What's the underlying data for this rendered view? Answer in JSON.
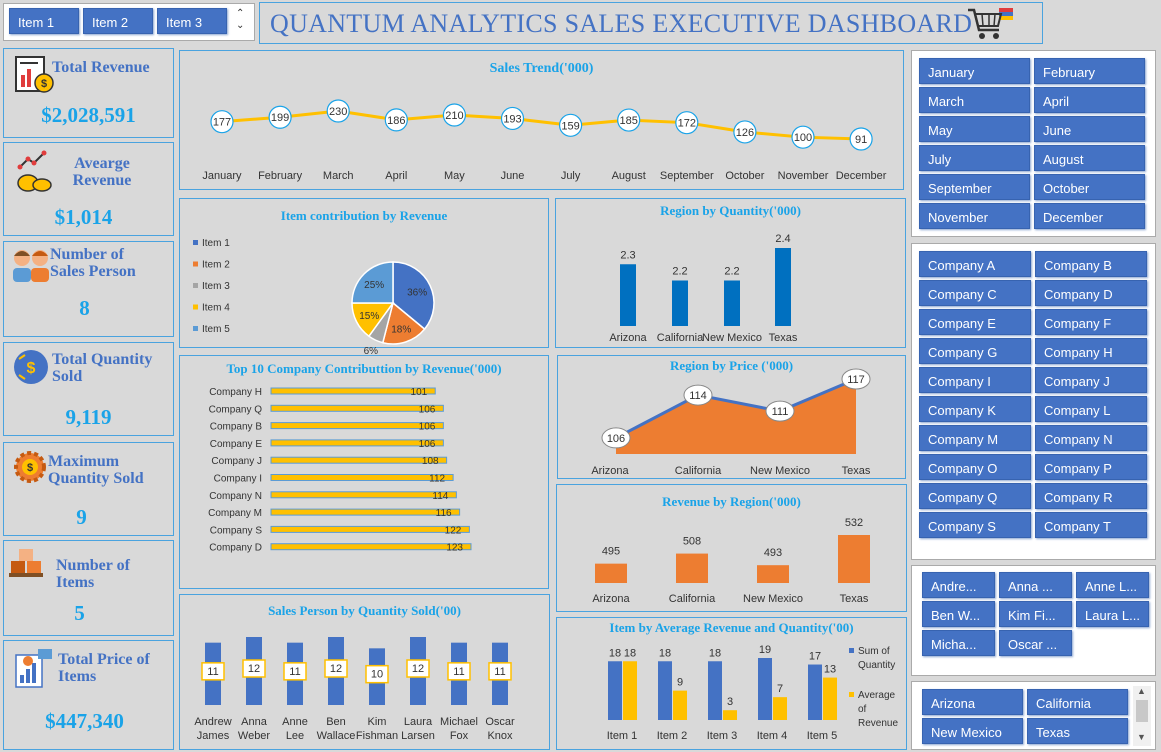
{
  "header": {
    "title": "QUANTUM ANALYTICS SALES EXECUTIVE DASHBOARD",
    "item_buttons": [
      "Item 1",
      "Item 2",
      "Item 3"
    ]
  },
  "kpis": [
    {
      "title": "Total Revenue",
      "value": "$2,028,591",
      "icon": "revenue-report-icon"
    },
    {
      "title": "Avearge Revenue",
      "value": "$1,014",
      "icon": "coins-growth-icon"
    },
    {
      "title": "Number of Sales Person",
      "value": "8",
      "icon": "people-icon"
    },
    {
      "title": "Total Quantity Sold",
      "value": "9,119",
      "icon": "quantity-exchange-icon"
    },
    {
      "title": "Maximum Quantity Sold",
      "value": "9",
      "icon": "gear-dollar-icon"
    },
    {
      "title": "Number of Items",
      "value": "5",
      "icon": "boxes-icon"
    },
    {
      "title": "Total Price of Items",
      "value": "$447,340",
      "icon": "price-chart-icon"
    }
  ],
  "slicers": {
    "months": [
      "January",
      "February",
      "March",
      "April",
      "May",
      "June",
      "July",
      "August",
      "September",
      "October",
      "November",
      "December"
    ],
    "companies": [
      "Company A",
      "Company B",
      "Company C",
      "Company D",
      "Company E",
      "Company F",
      "Company G",
      "Company H",
      "Company I",
      "Company J",
      "Company K",
      "Company L",
      "Company M",
      "Company N",
      "Company O",
      "Company P",
      "Company Q",
      "Company R",
      "Company S",
      "Company T"
    ],
    "sales_people": [
      "Andre...",
      "Anna ...",
      "Anne L...",
      "Ben W...",
      "Kim Fi...",
      "Laura L...",
      "Micha...",
      "Oscar ..."
    ],
    "regions": [
      "Arizona",
      "California",
      "New Mexico",
      "Texas"
    ]
  },
  "chart_data": [
    {
      "id": "sales-trend",
      "type": "line",
      "title": "Sales Trend('000)",
      "categories": [
        "January",
        "February",
        "March",
        "April",
        "May",
        "June",
        "July",
        "August",
        "September",
        "October",
        "November",
        "December"
      ],
      "values": [
        177,
        199,
        230,
        186,
        210,
        193,
        159,
        185,
        172,
        126,
        100,
        91
      ],
      "color": "#ffc000"
    },
    {
      "id": "item-contribution",
      "type": "pie",
      "title": "Item contribution by Revenue",
      "categories": [
        "Item 1",
        "Item 2",
        "Item 3",
        "Item 4",
        "Item 5"
      ],
      "values": [
        36,
        18,
        6,
        15,
        25
      ],
      "labels": [
        "36%",
        "18%",
        "6%",
        "15%",
        "25%"
      ],
      "colors": [
        "#4472c4",
        "#ed7d31",
        "#a5a5a5",
        "#ffc000",
        "#5b9bd5"
      ],
      "legend": "left"
    },
    {
      "id": "region-quantity",
      "type": "bar",
      "title": "Region by Quantity('000)",
      "categories": [
        "Arizona",
        "California",
        "New Mexico",
        "Texas"
      ],
      "values": [
        2.3,
        2.2,
        2.2,
        2.4
      ],
      "color": "#0070c0"
    },
    {
      "id": "top10-company",
      "type": "bar",
      "orientation": "horizontal",
      "title": "Top 10 Company Contributtion by Revenue('000)",
      "categories": [
        "Company H",
        "Company Q",
        "Company B",
        "Company E",
        "Company J",
        "Company I",
        "Company N",
        "Company M",
        "Company S",
        "Company D"
      ],
      "values": [
        101,
        106,
        106,
        106,
        108,
        112,
        114,
        116,
        122,
        123
      ],
      "color": "#ffc000",
      "border": "#5b9bd5"
    },
    {
      "id": "region-price",
      "type": "area",
      "title": "Region by Price ('000)",
      "categories": [
        "Arizona",
        "California",
        "New Mexico",
        "Texas"
      ],
      "values": [
        106,
        114,
        111,
        117
      ],
      "color": "#ed7d31",
      "line_color": "#4472c4"
    },
    {
      "id": "revenue-region",
      "type": "bar",
      "title": "Revenue by Region('000)",
      "categories": [
        "Arizona",
        "California",
        "New Mexico",
        "Texas"
      ],
      "values": [
        495,
        508,
        493,
        532
      ],
      "color": "#ed7d31"
    },
    {
      "id": "salesperson-quantity",
      "type": "bar",
      "title": "Sales Person by Quantity Sold('00)",
      "categories": [
        [
          "Andrew",
          "James"
        ],
        [
          "Anna",
          "Weber"
        ],
        [
          "Anne",
          "Lee"
        ],
        [
          "Ben",
          "Wallace"
        ],
        [
          "Kim",
          "Fishman"
        ],
        [
          "Laura",
          "Larsen"
        ],
        [
          "Michael",
          "Fox"
        ],
        [
          "Oscar",
          "Knox"
        ]
      ],
      "values": [
        11,
        12,
        11,
        12,
        10,
        12,
        11,
        11
      ],
      "color": "#4472c4"
    },
    {
      "id": "item-avg-revenue-quantity",
      "type": "bar",
      "title": "Item by Average Revenue and Quantity('00)",
      "categories": [
        "Item 1",
        "Item 2",
        "Item 3",
        "Item 4",
        "Item 5"
      ],
      "series": [
        {
          "name": "Sum of Quantity",
          "values": [
            18,
            18,
            18,
            19,
            17
          ],
          "color": "#4472c4"
        },
        {
          "name": "Average of Revenue",
          "values": [
            18,
            9,
            3,
            7,
            13
          ],
          "color": "#ffc000"
        }
      ],
      "legend": "right"
    }
  ]
}
